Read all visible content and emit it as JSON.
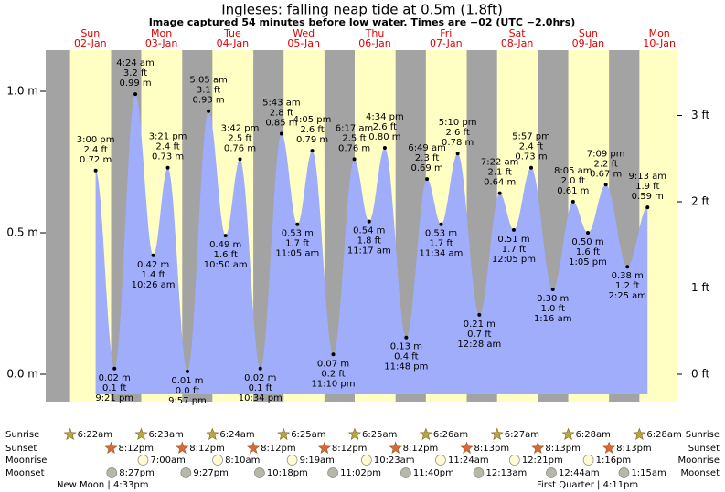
{
  "title": "Ingleses: falling  neap tide at 0.5m (1.8ft)",
  "subtitle": "Image captured 54 minutes before low water. Times are −02 (UTC −2.0hrs)",
  "yticks_m": [
    {
      "value": 1.0,
      "label": "1.0 m"
    },
    {
      "value": 0.5,
      "label": "0.5 m"
    },
    {
      "value": 0.0,
      "label": "0.0 m"
    }
  ],
  "yticks_ft": [
    {
      "value": 0,
      "label": "0 ft"
    },
    {
      "value": 1,
      "label": "1 ft"
    },
    {
      "value": 2,
      "label": "2 ft"
    },
    {
      "value": 3,
      "label": "3 ft"
    }
  ],
  "row_labels": {
    "sunrise": "Sunrise",
    "sunset": "Sunset",
    "moonrise": "Moonrise",
    "moonset": "Moonset"
  },
  "days": [
    {
      "weekday": "Sun",
      "date": "02-Jan",
      "sunrise": "6:22am",
      "sunset": "8:12pm",
      "moonrise": null,
      "moonset": "8:27pm",
      "tides": [
        {
          "type": "high",
          "time": "3:00 pm",
          "ft": "2.4 ft",
          "m": 0.72,
          "m_label": "0.72 m"
        },
        {
          "type": "low",
          "time": "9:21 pm",
          "ft": "0.1 ft",
          "m": 0.02,
          "m_label": "0.02 m"
        }
      ]
    },
    {
      "weekday": "Mon",
      "date": "03-Jan",
      "sunrise": "6:23am",
      "sunset": "8:12pm",
      "moonrise": "7:00am",
      "moonset": "9:27pm",
      "tides": [
        {
          "type": "high",
          "time": "4:24 am",
          "ft": "3.2 ft",
          "m": 0.99,
          "m_label": "0.99 m"
        },
        {
          "type": "low",
          "time": "10:26 am",
          "ft": "1.4 ft",
          "m": 0.42,
          "m_label": "0.42 m"
        },
        {
          "type": "high",
          "time": "3:21 pm",
          "ft": "2.4 ft",
          "m": 0.73,
          "m_label": "0.73 m"
        },
        {
          "type": "low",
          "time": "9:57 pm",
          "ft": "0.0 ft",
          "m": 0.01,
          "m_label": "0.01 m"
        }
      ]
    },
    {
      "weekday": "Tue",
      "date": "04-Jan",
      "sunrise": "6:24am",
      "sunset": "8:12pm",
      "moonrise": "8:10am",
      "moonset": "10:18pm",
      "tides": [
        {
          "type": "high",
          "time": "5:05 am",
          "ft": "3.1 ft",
          "m": 0.93,
          "m_label": "0.93 m"
        },
        {
          "type": "low",
          "time": "10:50 am",
          "ft": "1.6 ft",
          "m": 0.49,
          "m_label": "0.49 m"
        },
        {
          "type": "high",
          "time": "3:42 pm",
          "ft": "2.5 ft",
          "m": 0.76,
          "m_label": "0.76 m"
        },
        {
          "type": "low",
          "time": "10:34 pm",
          "ft": "0.1 ft",
          "m": 0.02,
          "m_label": "0.02 m"
        }
      ]
    },
    {
      "weekday": "Wed",
      "date": "05-Jan",
      "sunrise": "6:25am",
      "sunset": "8:12pm",
      "moonrise": "9:19am",
      "moonset": "11:02pm",
      "tides": [
        {
          "type": "high",
          "time": "5:43 am",
          "ft": "2.8 ft",
          "m": 0.85,
          "m_label": "0.85 m"
        },
        {
          "type": "low",
          "time": "11:05 am",
          "ft": "1.7 ft",
          "m": 0.53,
          "m_label": "0.53 m"
        },
        {
          "type": "high",
          "time": "4:05 pm",
          "ft": "2.6 ft",
          "m": 0.79,
          "m_label": "0.79 m"
        },
        {
          "type": "low",
          "time": "11:10 pm",
          "ft": "0.2 ft",
          "m": 0.07,
          "m_label": "0.07 m"
        }
      ]
    },
    {
      "weekday": "Thu",
      "date": "06-Jan",
      "sunrise": "6:25am",
      "sunset": "8:12pm",
      "moonrise": "10:23am",
      "moonset": "11:40pm",
      "tides": [
        {
          "type": "high",
          "time": "6:17 am",
          "ft": "2.5 ft",
          "m": 0.76,
          "m_label": "0.76 m"
        },
        {
          "type": "low",
          "time": "11:17 am",
          "ft": "1.8 ft",
          "m": 0.54,
          "m_label": "0.54 m"
        },
        {
          "type": "high",
          "time": "4:34 pm",
          "ft": "2.6 ft",
          "m": 0.8,
          "m_label": "0.80 m"
        },
        {
          "type": "low",
          "time": "11:48 pm",
          "ft": "0.4 ft",
          "m": 0.13,
          "m_label": "0.13 m"
        }
      ]
    },
    {
      "weekday": "Fri",
      "date": "07-Jan",
      "sunrise": "6:26am",
      "sunset": "8:13pm",
      "moonrise": "11:24am",
      "moonset": null,
      "tides": [
        {
          "type": "high",
          "time": "6:49 am",
          "ft": "2.3 ft",
          "m": 0.69,
          "m_label": "0.69 m"
        },
        {
          "type": "low",
          "time": "11:34 am",
          "ft": "1.7 ft",
          "m": 0.53,
          "m_label": "0.53 m"
        },
        {
          "type": "high",
          "time": "5:10 pm",
          "ft": "2.6 ft",
          "m": 0.78,
          "m_label": "0.78 m"
        }
      ]
    },
    {
      "weekday": "Sat",
      "date": "08-Jan",
      "sunrise": "6:27am",
      "sunset": "8:13pm",
      "moonrise": "12:21pm",
      "moonset": "12:13am",
      "tides": [
        {
          "type": "low",
          "time": "12:28 am",
          "ft": "0.7 ft",
          "m": 0.21,
          "m_label": "0.21 m"
        },
        {
          "type": "high",
          "time": "7:22 am",
          "ft": "2.1 ft",
          "m": 0.64,
          "m_label": "0.64 m"
        },
        {
          "type": "low",
          "time": "12:05 pm",
          "ft": "1.7 ft",
          "m": 0.51,
          "m_label": "0.51 m"
        },
        {
          "type": "high",
          "time": "5:57 pm",
          "ft": "2.4 ft",
          "m": 0.73,
          "m_label": "0.73 m"
        }
      ]
    },
    {
      "weekday": "Sun",
      "date": "09-Jan",
      "sunrise": "6:28am",
      "sunset": "8:13pm",
      "moonrise": "1:16pm",
      "moonset": "12:44am",
      "tides": [
        {
          "type": "low",
          "time": "1:16 am",
          "ft": "1.0 ft",
          "m": 0.3,
          "m_label": "0.30 m"
        },
        {
          "type": "high",
          "time": "8:05 am",
          "ft": "2.0 ft",
          "m": 0.61,
          "m_label": "0.61 m"
        },
        {
          "type": "low",
          "time": "1:05 pm",
          "ft": "1.6 ft",
          "m": 0.5,
          "m_label": "0.50 m"
        },
        {
          "type": "high",
          "time": "7:09 pm",
          "ft": "2.2 ft",
          "m": 0.67,
          "m_label": "0.67 m"
        }
      ]
    },
    {
      "weekday": "Mon",
      "date": "10-Jan",
      "sunrise": "6:28am",
      "sunset": null,
      "moonrise": null,
      "moonset": "1:15am",
      "tides": [
        {
          "type": "low",
          "time": "2:25 am",
          "ft": "1.2 ft",
          "m": 0.38,
          "m_label": "0.38 m"
        },
        {
          "type": "high",
          "time": "9:13 am",
          "ft": "1.9 ft",
          "m": 0.59,
          "m_label": "0.59 m"
        }
      ]
    }
  ],
  "moon_phases": [
    {
      "name": "New Moon",
      "time": "4:33pm"
    },
    {
      "name": "First Quarter",
      "time": "4:11pm"
    }
  ]
}
